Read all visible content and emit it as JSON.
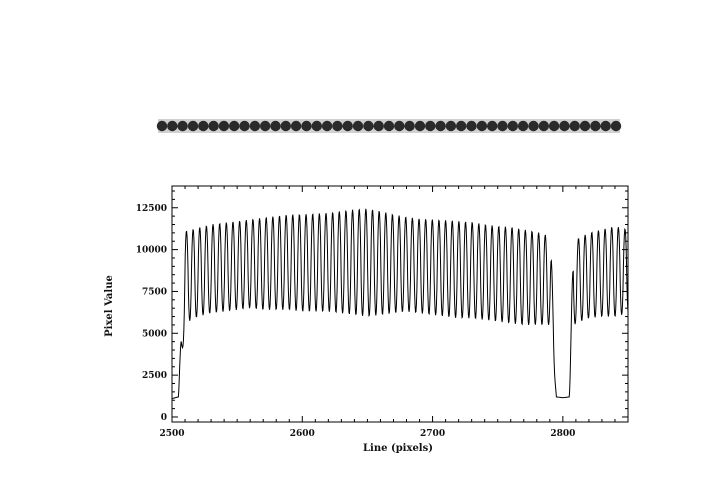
{
  "chart_data": {
    "type": "line",
    "title": "",
    "xlabel": "Line (pixels)",
    "ylabel": "Pixel Value",
    "xlim": [
      2500,
      2850
    ],
    "ylim": [
      -300,
      13800
    ],
    "xticks": [
      2500,
      2600,
      2700,
      2800
    ],
    "xtick_labels": [
      "2500",
      "2600",
      "2700",
      "2800"
    ],
    "yticks": [
      0,
      2500,
      5000,
      7500,
      10000,
      12500
    ],
    "ytick_labels": [
      "0",
      "2500",
      "5000",
      "7500",
      "10000",
      "12500"
    ],
    "grid": false,
    "legend": "none",
    "colors": {
      "line": "#000000",
      "frame": "#000000",
      "strip_spot": "#2a2a2a",
      "strip_background": "#bdbdbd"
    },
    "series": [
      {
        "x": [
          2500,
          2505,
          2510,
          2520,
          2530,
          2540,
          2550,
          2560,
          2570,
          2580,
          2590,
          2600,
          2610,
          2620,
          2630,
          2640,
          2650,
          2660,
          2670,
          2680,
          2690,
          2700,
          2710,
          2720,
          2730,
          2740,
          2750,
          2760,
          2770,
          2780,
          2790,
          2791,
          2795,
          2800,
          2805,
          2808,
          2810,
          2820,
          2830,
          2840,
          2850
        ],
        "peaks": [
          1100,
          1200,
          11100,
          11300,
          11500,
          11600,
          11700,
          11800,
          11900,
          12000,
          12100,
          12100,
          12150,
          12200,
          12300,
          12400,
          12450,
          12300,
          12100,
          11950,
          11850,
          11800,
          11750,
          11700,
          11650,
          11500,
          11400,
          11350,
          11200,
          11050,
          10800,
          10000,
          1200,
          1150,
          1200,
          10500,
          10600,
          11000,
          11200,
          11400,
          11200
        ],
        "troughs": [
          1100,
          1200,
          5600,
          6000,
          6200,
          6300,
          6400,
          6500,
          6400,
          6400,
          6400,
          6300,
          6300,
          6300,
          6200,
          6100,
          6000,
          6100,
          6200,
          6300,
          6200,
          6100,
          6000,
          5900,
          5900,
          5800,
          5700,
          5600,
          5500,
          5500,
          5500,
          5000,
          1200,
          1150,
          1200,
          5400,
          5600,
          5900,
          6000,
          6000,
          6200
        ]
      }
    ],
    "notes": ""
  },
  "strip": {
    "spot_count": 45
  }
}
